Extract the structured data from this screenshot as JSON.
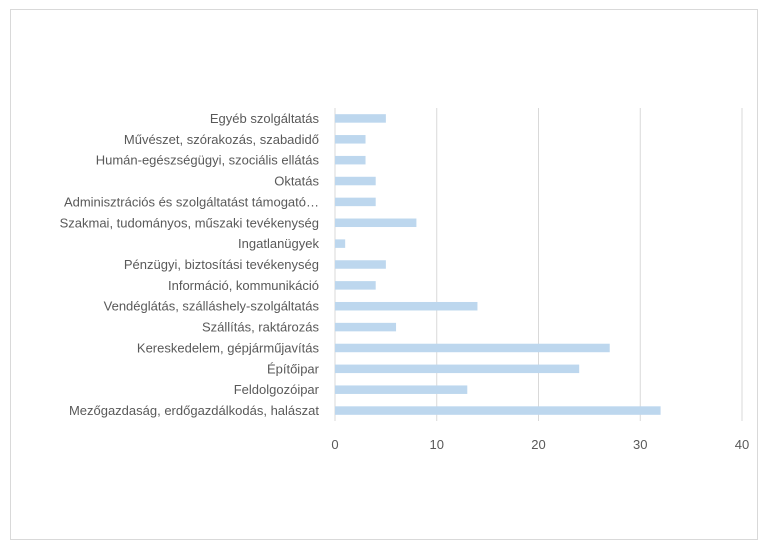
{
  "chart_data": {
    "type": "bar",
    "orientation": "horizontal",
    "categories": [
      "Mezőgazdaság, erdőgazdálkodás, halászat",
      "Feldolgozóipar",
      "Építőipar",
      "Kereskedelem, gépjárműjavítás",
      "Szállítás, raktározás",
      "Vendéglátás, szálláshely-szolgáltatás",
      "Információ, kommunikáció",
      "Pénzügyi, biztosítási tevékenység",
      "Ingatlanügyek",
      "Szakmai, tudományos, műszaki tevékenység",
      "Adminisztrációs és szolgáltatást támogató…",
      "Oktatás",
      "Humán-egészségügyi, szociális ellátás",
      "Művészet, szórakozás, szabadidő",
      "Egyéb szolgáltatás"
    ],
    "values": [
      32,
      13,
      24,
      27,
      6,
      14,
      4,
      5,
      1,
      8,
      4,
      4,
      3,
      3,
      5
    ],
    "xlim": [
      0,
      40
    ],
    "xticks": [
      "0",
      "10",
      "20",
      "30",
      "40"
    ],
    "grid": "vertical",
    "title": "",
    "xlabel": "",
    "ylabel": "",
    "bar_color": "#bdd7ee",
    "grid_color": "#d9d9d9"
  }
}
